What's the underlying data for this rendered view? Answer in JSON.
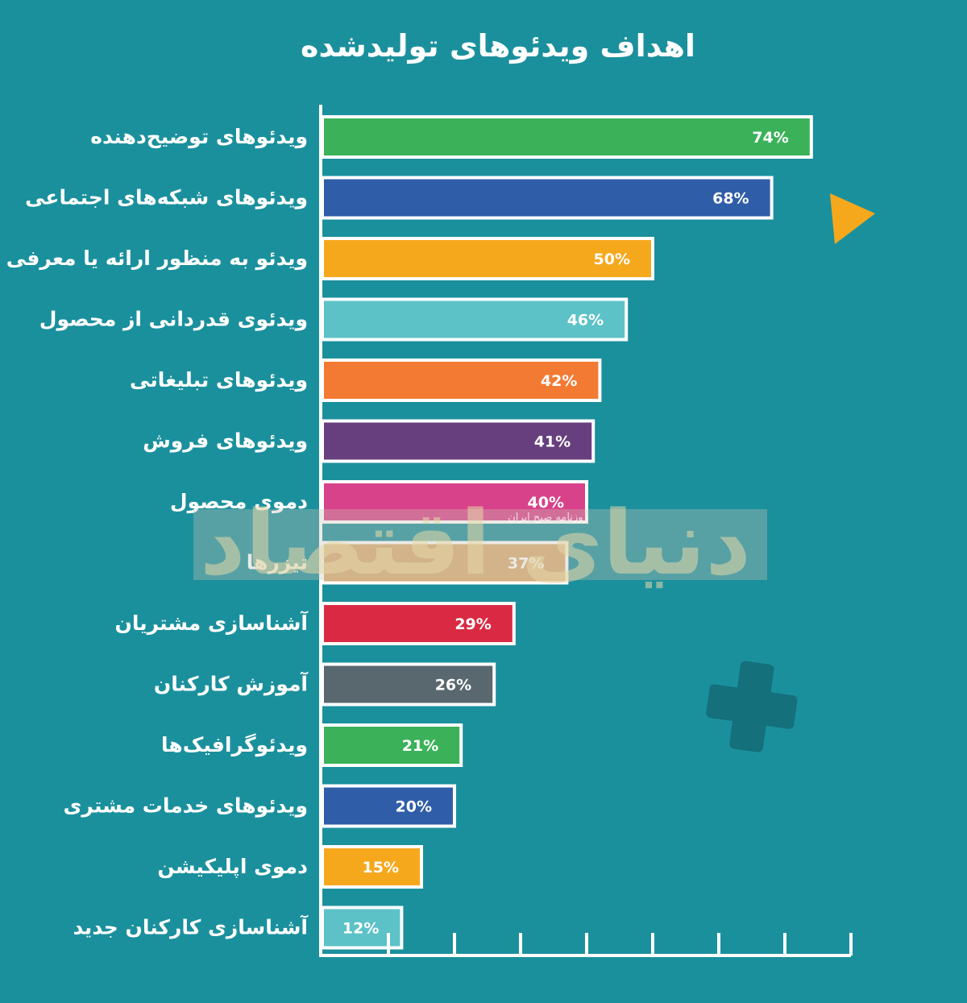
{
  "chart_data": {
    "type": "bar",
    "orientation": "horizontal",
    "title": "اهداف ویدئوهای تولیدشده",
    "xlabel": "",
    "ylabel": "",
    "xlim": [
      0,
      80
    ],
    "grid": false,
    "value_suffix": "%",
    "categories": [
      "ویدئوهای توضیح‌دهنده",
      "ویدئوهای شبکه‌های اجتماعی",
      "ویدئو به منظور ارائه یا معرفی",
      "ویدئوی قدردانی از محصول",
      "ویدئوهای تبلیغاتی",
      "ویدئوهای فروش",
      "دموی محصول",
      "تیزرها",
      "آشناسازی مشتریان",
      "آموزش کارکنان",
      "ویدئوگرافیک‌ها",
      "ویدئوهای خدمات مشتری",
      "دموی اپلیکیشن",
      "آشناسازی کارکنان جدید"
    ],
    "values": [
      74,
      68,
      50,
      46,
      42,
      41,
      40,
      37,
      29,
      26,
      21,
      20,
      15,
      12
    ],
    "value_labels": [
      "74%",
      "68%",
      "50%",
      "46%",
      "42%",
      "41%",
      "40%",
      "37%",
      "29%",
      "26%",
      "21%",
      "20%",
      "15%",
      "12%"
    ],
    "bar_colors": [
      "#3bb15a",
      "#2f5da8",
      "#f6a81c",
      "#5cc2c8",
      "#f37a33",
      "#673f7e",
      "#d8428a",
      "#d7ab74",
      "#da2a43",
      "#59676e",
      "#3bb15a",
      "#2f5da8",
      "#f6a81c",
      "#5cc2c8"
    ]
  },
  "watermark": {
    "text": "دنیای اقتصاد",
    "subtext": "روزنامه صبح ایران"
  },
  "colors": {
    "background": "#1b909d",
    "bar_border": "#ffffff",
    "axis": "#ffffff",
    "accent_triangle": "#f6a81c",
    "plus_shape": "#14707b"
  },
  "decorations": [
    "orange-triangle-icon",
    "plus-icon"
  ]
}
